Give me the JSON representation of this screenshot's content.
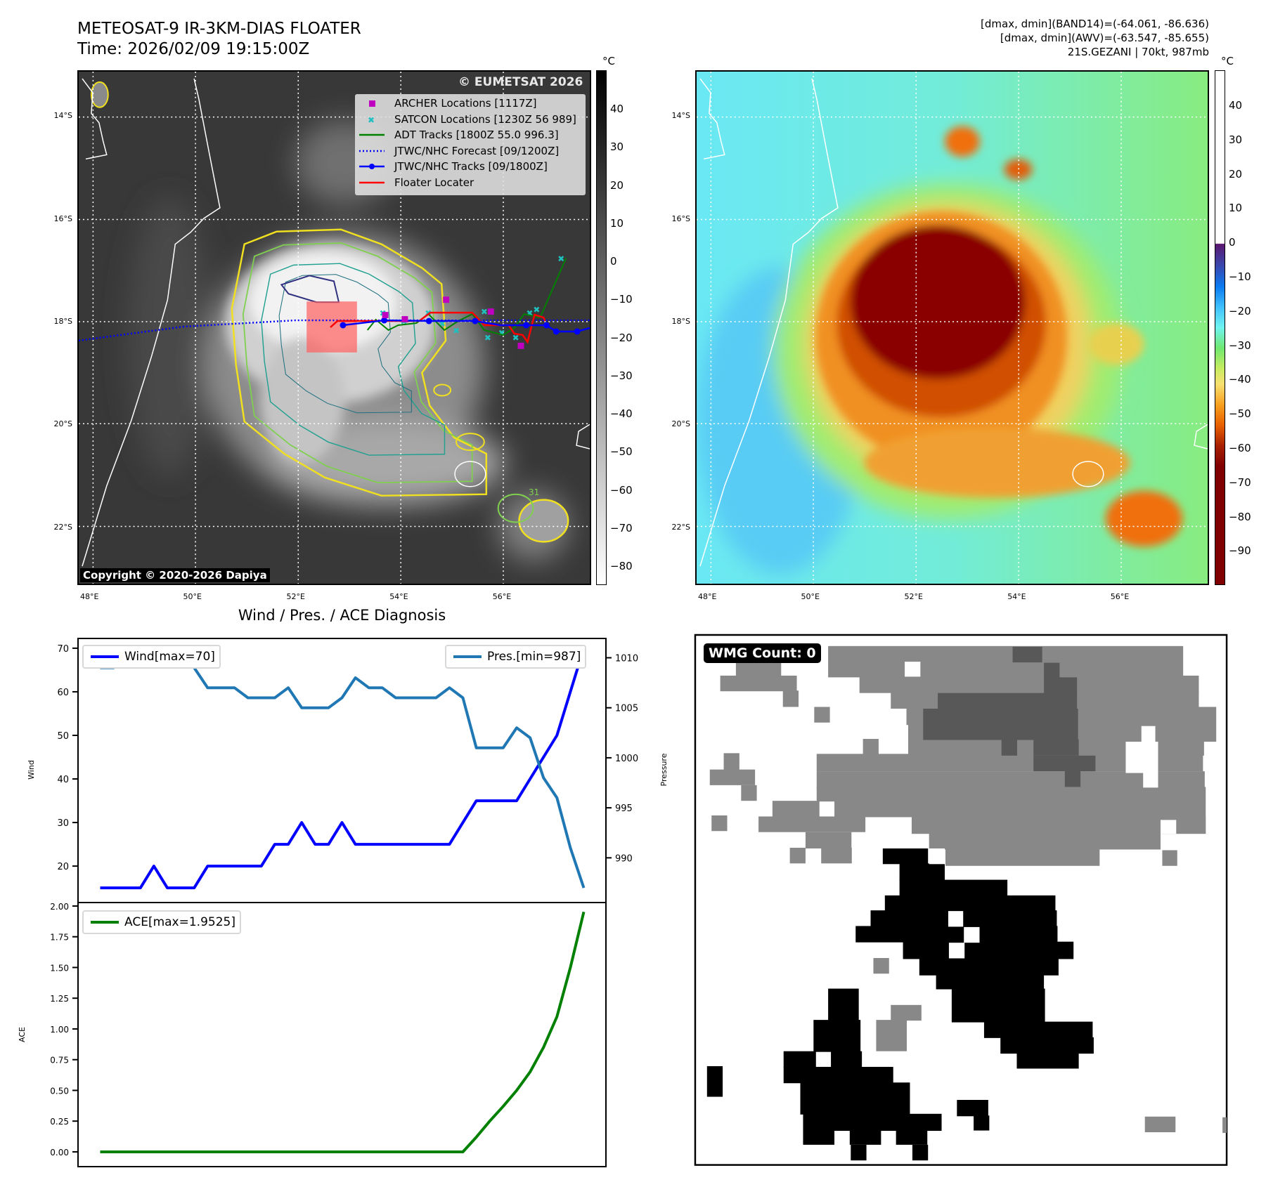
{
  "left_map": {
    "title_line1": "METEOSAT-9 IR-3KM-DIAS FLOATER",
    "title_line2": "Time: 2026/02/09 19:15:00Z",
    "colorbar_unit": "°C",
    "colorbar_ticks": [
      "40",
      "30",
      "20",
      "10",
      "0",
      "−10",
      "−20",
      "−30",
      "−40",
      "−50",
      "−60",
      "−70",
      "−80"
    ],
    "lat_labels": [
      "14°S",
      "16°S",
      "18°S",
      "20°S",
      "22°S"
    ],
    "lon_labels": [
      "48°E",
      "50°E",
      "52°E",
      "54°E",
      "56°E"
    ],
    "legend": [
      {
        "label": "ARCHER Locations [1117Z]",
        "color": "#c000c0",
        "marker": "square"
      },
      {
        "label": "SATCON Locations [1230Z 56 989]",
        "color": "#20c0c0",
        "marker": "x"
      },
      {
        "label": "ADT Tracks [1800Z 55.0 996.3]",
        "color": "#008000",
        "marker": "line"
      },
      {
        "label": "JTWC/NHC Forecast [09/1200Z]",
        "color": "#0000ff",
        "marker": "dotted"
      },
      {
        "label": "JTWC/NHC Tracks [09/1800Z]",
        "color": "#0000ff",
        "marker": "line-dot"
      },
      {
        "label": "Floater Locater",
        "color": "#ff0000",
        "marker": "line"
      }
    ],
    "watermark": "© EUMETSAT 2026",
    "copyright": "Copyright © 2020-2026 Dapiya",
    "contour_label": "31"
  },
  "right_map": {
    "info_lines": [
      "[dmax, dmin](BAND14)=(-64.061, -86.636)",
      "[dmax, dmin](AWV)=(-63.547, -85.655)",
      "21S.GEZANI | 70kt, 987mb"
    ],
    "colorbar_unit": "°C",
    "colorbar_ticks": [
      "40",
      "30",
      "20",
      "10",
      "0",
      "−10",
      "−20",
      "−30",
      "−40",
      "−50",
      "−60",
      "−70",
      "−80",
      "−90"
    ],
    "lat_labels": [
      "14°S",
      "16°S",
      "18°S",
      "20°S",
      "22°S"
    ],
    "lon_labels": [
      "48°E",
      "50°E",
      "52°E",
      "54°E",
      "56°E"
    ]
  },
  "wmg": {
    "label": "WMG Count: 0"
  },
  "chart_data": {
    "type": "line",
    "title": "Wind / Pres. / ACE Diagnosis",
    "x": [
      0,
      1,
      2,
      3,
      4,
      5,
      6,
      7,
      8,
      9,
      10,
      11,
      12,
      13,
      14,
      15,
      16,
      17,
      18,
      19,
      20,
      21,
      22,
      23,
      24,
      25,
      26,
      27,
      28,
      29,
      30,
      31,
      32,
      33,
      34,
      35,
      36
    ],
    "xlim": [
      -1.7,
      37.7
    ],
    "panels": [
      {
        "ylabel": "Wind",
        "ylim": [
          11.8,
          72.4
        ],
        "yticks": [
          20,
          30,
          40,
          50,
          60,
          70
        ],
        "y2label": "Pressure",
        "y2lim": [
          985.6,
          1012.0
        ],
        "y2ticks": [
          990,
          995,
          1000,
          1005,
          1010
        ],
        "series": [
          {
            "name": "Wind[max=70]",
            "axis": "left",
            "color": "#0000ff",
            "values": [
              15,
              15,
              15,
              15,
              20,
              15,
              15,
              15,
              20,
              20,
              20,
              20,
              20,
              25,
              25,
              30,
              25,
              25,
              30,
              25,
              25,
              25,
              25,
              25,
              25,
              25,
              25,
              30,
              35,
              35,
              35,
              35,
              40,
              45,
              50,
              60,
              70
            ]
          },
          {
            "name": "Pres.[min=987]",
            "axis": "right",
            "color": "#1f77b4",
            "values": [
              1009,
              1009,
              1011,
              1011,
              1011,
              1011,
              1011,
              1009,
              1007,
              1007,
              1007,
              1006,
              1006,
              1006,
              1007,
              1005,
              1005,
              1005,
              1006,
              1008,
              1007,
              1007,
              1006,
              1006,
              1006,
              1006,
              1007,
              1006,
              1001,
              1001,
              1001,
              1003,
              1002,
              998,
              996,
              991,
              987
            ]
          }
        ]
      },
      {
        "ylabel": "ACE",
        "ylim": [
          -0.126,
          2.034
        ],
        "yticks": [
          "0.00",
          "0.25",
          "0.50",
          "0.75",
          "1.00",
          "1.25",
          "1.50",
          "1.75",
          "2.00"
        ],
        "series": [
          {
            "name": "ACE[max=1.9525]",
            "axis": "left",
            "color": "#008000",
            "values": [
              0,
              0,
              0,
              0,
              0,
              0,
              0,
              0,
              0,
              0,
              0,
              0,
              0,
              0,
              0,
              0,
              0,
              0,
              0,
              0,
              0,
              0,
              0,
              0,
              0,
              0,
              0,
              0,
              0.12,
              0.25,
              0.37,
              0.5,
              0.65,
              0.85,
              1.1,
              1.5,
              1.9525
            ]
          }
        ]
      }
    ]
  }
}
